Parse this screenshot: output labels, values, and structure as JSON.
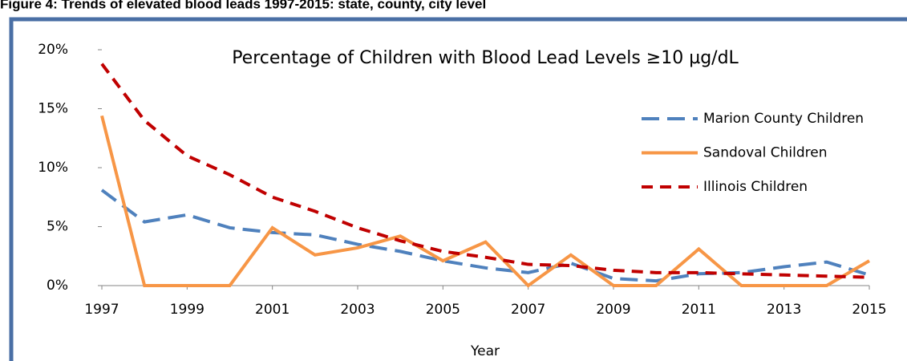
{
  "caption": "Figure 4: Trends of elevated blood leads 1997-2015: state, county, city level",
  "chart_data": {
    "type": "line",
    "title": "Percentage of Children with Blood Lead Levels ≥10 µg/dL",
    "x_label": "Year",
    "x": [
      1997,
      1998,
      1999,
      2000,
      2001,
      2002,
      2003,
      2004,
      2005,
      2006,
      2007,
      2008,
      2009,
      2010,
      2011,
      2012,
      2013,
      2014,
      2015
    ],
    "xlim": [
      1997,
      2015
    ],
    "xticks": [
      1997,
      1999,
      2001,
      2003,
      2005,
      2007,
      2009,
      2011,
      2013,
      2015
    ],
    "ylim": [
      0,
      20
    ],
    "yticks": [
      {
        "value": 0,
        "label": "0%"
      },
      {
        "value": 5,
        "label": "5%"
      },
      {
        "value": 10,
        "label": "10%"
      },
      {
        "value": 15,
        "label": "15%"
      },
      {
        "value": 20,
        "label": "20%"
      }
    ],
    "legend": "right",
    "series": [
      {
        "name": "Marion County Children",
        "color": "#4f81bd",
        "dash": "long",
        "values": [
          8.1,
          5.4,
          6.0,
          4.9,
          4.5,
          4.3,
          3.5,
          2.9,
          2.1,
          1.5,
          1.1,
          1.9,
          0.6,
          0.4,
          1.0,
          1.1,
          1.6,
          2.0,
          0.9
        ]
      },
      {
        "name": "Sandoval Children",
        "color": "#f79646",
        "dash": "solid",
        "values": [
          14.4,
          0,
          0,
          0,
          4.9,
          2.6,
          3.2,
          4.2,
          2.1,
          3.7,
          0,
          2.6,
          0,
          0,
          3.1,
          0,
          0,
          0,
          2.1
        ]
      },
      {
        "name": "Illinois Children",
        "color": "#c00000",
        "dash": "short",
        "values": [
          18.8,
          14.0,
          11.0,
          9.4,
          7.5,
          6.3,
          4.9,
          3.8,
          2.9,
          2.4,
          1.8,
          1.7,
          1.3,
          1.1,
          1.1,
          1.0,
          0.9,
          0.8,
          0.7
        ]
      }
    ]
  }
}
